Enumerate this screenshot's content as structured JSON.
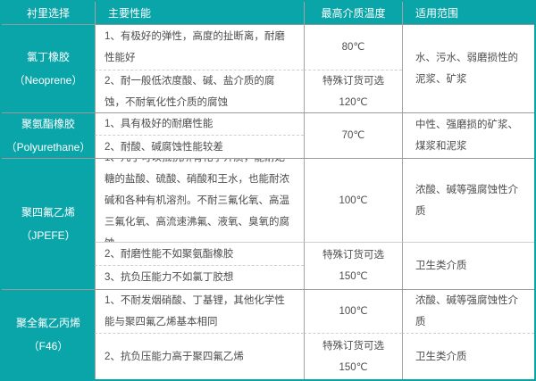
{
  "colors": {
    "header_teal": "#0aa5a9",
    "body_text": "#4d4d4d",
    "grid_line": "#a3a3a3",
    "major_row_line": "#9b9b9b",
    "sub_row_dash": "#cfcfcf"
  },
  "header": {
    "columns": [
      "衬里选择",
      "主要性能",
      "最高介质温度",
      "适用范围"
    ]
  },
  "rows": [
    {
      "material": {
        "name": "氯丁橡胶",
        "en": "（Neoprene）"
      },
      "performances": [
        "1、有极好的弹性，高度的扯断离，耐磨性能好",
        "2、耐一般低浓度酸、碱、盐介质的腐蚀，不耐氧化性介质的腐蚀"
      ],
      "temps": [
        [
          "80℃"
        ],
        [
          "特殊订货可选",
          "120℃"
        ]
      ],
      "ranges": [
        [
          "水、污水、弱磨损性的泥浆、矿浆"
        ]
      ]
    },
    {
      "material": {
        "name": "聚氨酯橡胶",
        "en": "（Polyurethane）"
      },
      "performances": [
        "1、具有极好的耐磨性能",
        "2、耐酸、碱腐蚀性能较差"
      ],
      "temps": [
        [
          "70℃"
        ]
      ],
      "ranges": [
        [
          "中性、强磨损的矿浆、煤浆和泥浆"
        ]
      ]
    },
    {
      "material": {
        "name": "聚四氟乙烯",
        "en": "（JPEFE）"
      },
      "performances": [
        "1、几乎可以抵抗所有化学介质，能耐妃糖的盐酸、硫酸、硝酸和王水，也能耐浓碱和各种有机溶剂。不耐三氟化氧、高温三氟化氧、高流速沸氟、液氧、臭氧的腐蚀",
        "2、耐磨性能不如聚氨酯橡胶",
        "3、抗负压能力不如氯丁胶想"
      ],
      "temps": [
        [
          "100℃"
        ],
        [
          "特殊订货可选",
          "150℃"
        ]
      ],
      "ranges": [
        [
          "浓酸、碱等强腐蚀性介质"
        ],
        [
          "卫生类介质"
        ]
      ]
    },
    {
      "material": {
        "name": "聚全氟乙丙烯",
        "en": "（F46）"
      },
      "performances": [
        "1、不耐发烟硝酸、丁基锂，其他化学性能与聚四氟乙烯基本相同",
        "2、抗负压能力高于聚四氟乙烯"
      ],
      "temps": [
        [
          "100℃"
        ],
        [
          "特殊订货可选",
          "150℃"
        ]
      ],
      "ranges": [
        [
          "浓酸、碱等强腐蚀性介质"
        ],
        [
          "卫生类介质"
        ]
      ]
    }
  ]
}
